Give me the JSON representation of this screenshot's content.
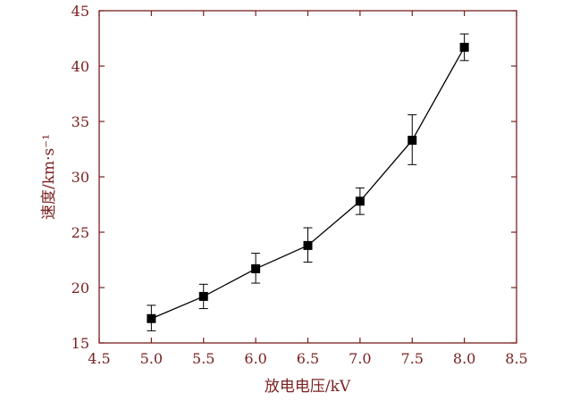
{
  "chart_data": {
    "type": "line",
    "xlabel": "放电电压/kV",
    "ylabel": "速度/km·s⁻¹",
    "xlim": [
      4.5,
      8.5
    ],
    "ylim": [
      15,
      45
    ],
    "xticks": [
      4.5,
      5.0,
      5.5,
      6.0,
      6.5,
      7.0,
      7.5,
      8.0,
      8.5
    ],
    "xtick_labels": [
      "4.5",
      "5.0",
      "5.5",
      "6.0",
      "6.5",
      "7.0",
      "7.5",
      "8.0",
      "8.5"
    ],
    "yticks": [
      15,
      20,
      25,
      30,
      35,
      40,
      45
    ],
    "ytick_labels": [
      "15",
      "20",
      "25",
      "30",
      "35",
      "40",
      "45"
    ],
    "grid": false,
    "marker": "square",
    "colors": {
      "axis": "#7a1f1f",
      "series": "#000000"
    },
    "series": [
      {
        "x": [
          5.0,
          5.5,
          6.0,
          6.5,
          7.0,
          7.5,
          8.0
        ],
        "y": [
          17.2,
          19.2,
          21.7,
          23.8,
          27.8,
          33.3,
          41.7
        ],
        "error_low": [
          16.1,
          18.1,
          20.4,
          22.3,
          26.6,
          31.1,
          40.5
        ],
        "error_high": [
          18.4,
          20.3,
          23.1,
          25.4,
          29.0,
          35.6,
          42.9
        ]
      }
    ]
  }
}
